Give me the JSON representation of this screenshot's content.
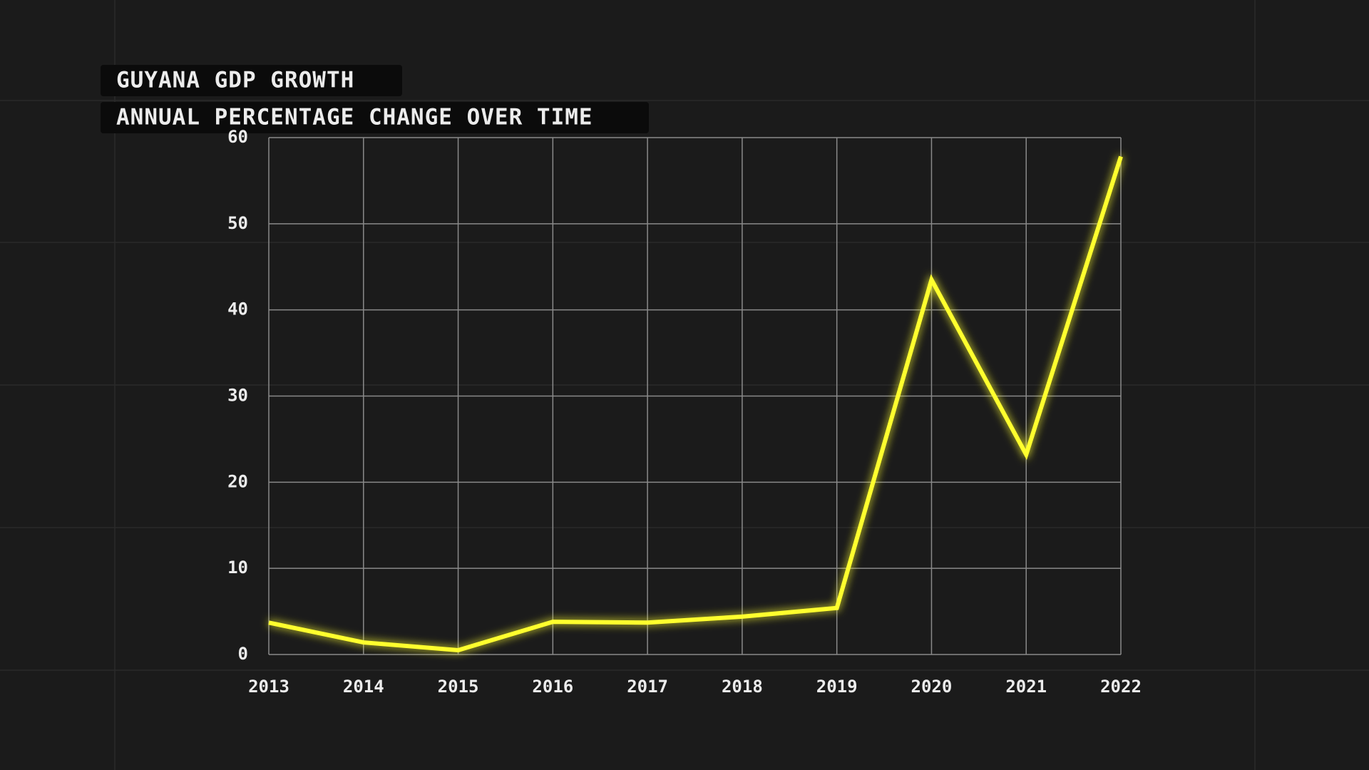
{
  "chart_data": {
    "type": "line",
    "title": "GUYANA GDP GROWTH",
    "subtitle": "ANNUAL PERCENTAGE CHANGE OVER TIME",
    "categories": [
      "2013",
      "2014",
      "2015",
      "2016",
      "2017",
      "2018",
      "2019",
      "2020",
      "2021",
      "2022"
    ],
    "values": [
      3.7,
      1.4,
      0.5,
      3.8,
      3.7,
      4.4,
      5.4,
      43.5,
      23.2,
      57.8
    ],
    "color": "#ffff2e",
    "ylim": [
      0,
      60
    ],
    "yticks": [
      0,
      10,
      20,
      30,
      40,
      50,
      60
    ],
    "grid": true
  }
}
